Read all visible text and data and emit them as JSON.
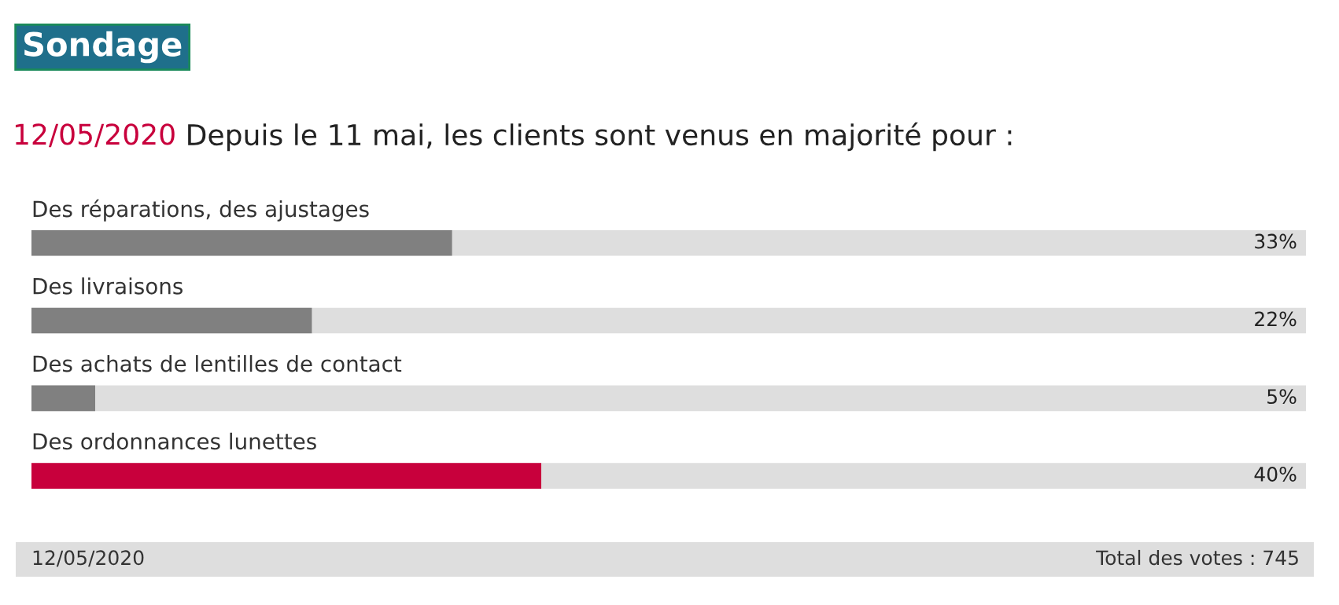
{
  "chart_data": {
    "type": "bar",
    "orientation": "horizontal",
    "title": "Sondage",
    "subtitle": "Depuis le 11 mai, les clients sont venus en majorité pour :",
    "categories": [
      "Des réparations, des ajustages",
      "Des livraisons",
      "Des achats de lentilles de contact",
      "Des ordonnances lunettes"
    ],
    "values": [
      33,
      22,
      5,
      40
    ],
    "colors": [
      "#808080",
      "#808080",
      "#808080",
      "#c8003c"
    ],
    "value_labels": [
      "33%",
      "22%",
      "5%",
      "40%"
    ],
    "xlim": [
      0,
      100
    ],
    "tick_labels": false,
    "annotations": [
      "12/05/2020",
      "12/05/2020",
      "Total des votes : 745"
    ]
  }
}
